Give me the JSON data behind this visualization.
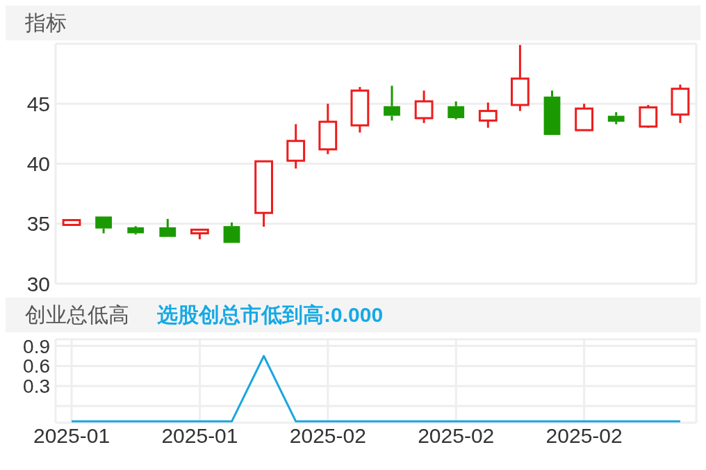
{
  "chart_data": [
    {
      "type": "candlestick",
      "title": "指标",
      "categories": [
        "2025-01",
        null,
        null,
        null,
        "2025-01",
        null,
        null,
        null,
        "2025-02",
        null,
        null,
        null,
        "2025-02",
        null,
        null,
        null,
        "2025-02",
        null,
        null,
        null
      ],
      "ohlc": [
        [
          34.9,
          35.3,
          34.9,
          35.3
        ],
        [
          35.6,
          35.6,
          34.2,
          34.6
        ],
        [
          34.7,
          34.8,
          34.1,
          34.2
        ],
        [
          34.7,
          35.4,
          33.9,
          33.9
        ],
        [
          34.2,
          34.5,
          33.7,
          34.5
        ],
        [
          34.8,
          35.1,
          33.4,
          33.4
        ],
        [
          35.9,
          40.2,
          34.75,
          40.2
        ],
        [
          40.25,
          43.3,
          39.6,
          41.9
        ],
        [
          41.2,
          45.0,
          40.8,
          43.5
        ],
        [
          43.2,
          46.4,
          42.6,
          46.1
        ],
        [
          44.8,
          46.5,
          43.6,
          44.0
        ],
        [
          43.8,
          46.1,
          43.4,
          45.2
        ],
        [
          44.8,
          45.2,
          43.7,
          43.8
        ],
        [
          43.6,
          45.1,
          43.0,
          44.4
        ],
        [
          44.9,
          49.9,
          44.4,
          47.1
        ],
        [
          45.6,
          46.1,
          42.4,
          42.4
        ],
        [
          42.8,
          45.0,
          42.8,
          44.6
        ],
        [
          44.0,
          44.3,
          43.3,
          43.5
        ],
        [
          43.1,
          44.9,
          43.0,
          44.7
        ],
        [
          44.1,
          46.6,
          43.4,
          46.25
        ]
      ],
      "colors": [
        "#ee1c1c",
        "#1a9a00",
        "#1a9a00",
        "#1a9a00",
        "#ee1c1c",
        "#1a9a00",
        "#ee1c1c",
        "#ee1c1c",
        "#ee1c1c",
        "#ee1c1c",
        "#1a9a00",
        "#ee1c1c",
        "#1a9a00",
        "#ee1c1c",
        "#ee1c1c",
        "#1a9a00",
        "#ee1c1c",
        "#1a9a00",
        "#ee1c1c",
        "#ee1c1c"
      ],
      "ylim": [
        30,
        50
      ],
      "yticks": [
        30,
        35,
        40,
        45
      ],
      "grid": true,
      "tick_labels": "y"
    },
    {
      "type": "line",
      "title": "创业总低高",
      "subtitle": "选股创总市低到高:0.000",
      "categories": [
        "2025-01",
        null,
        null,
        null,
        "2025-01",
        null,
        null,
        null,
        "2025-02",
        null,
        null,
        null,
        "2025-02",
        null,
        null,
        null,
        "2025-02",
        null,
        null,
        null
      ],
      "series": [
        {
          "color": "#1aa6e0",
          "values": [
            -0.23,
            -0.23,
            -0.23,
            -0.23,
            -0.23,
            -0.23,
            0.75,
            -0.23,
            -0.23,
            -0.23,
            -0.23,
            -0.23,
            -0.23,
            -0.23,
            -0.23,
            -0.23,
            -0.23,
            -0.23,
            -0.23,
            -0.23
          ]
        }
      ],
      "ylim": [
        -0.25,
        1.0
      ],
      "yticks": [
        {
          "value": 0,
          "label": null
        },
        0.3,
        0.6,
        0.9
      ],
      "grid": true,
      "marker": "none"
    }
  ]
}
